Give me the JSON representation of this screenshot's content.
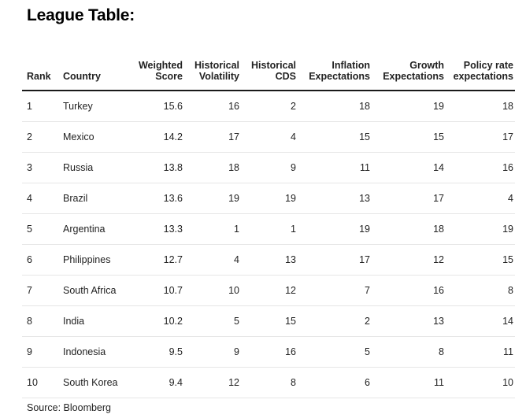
{
  "title": "League Table:",
  "columns": [
    {
      "label_line1": "",
      "label_line2": "Rank"
    },
    {
      "label_line1": "",
      "label_line2": "Country"
    },
    {
      "label_line1": "Weighted",
      "label_line2": "Score"
    },
    {
      "label_line1": "Historical",
      "label_line2": "Volatility"
    },
    {
      "label_line1": "Historical",
      "label_line2": "CDS"
    },
    {
      "label_line1": "Inflation",
      "label_line2": "Expectations"
    },
    {
      "label_line1": "Growth",
      "label_line2": "Expectations"
    },
    {
      "label_line1": "Policy rate",
      "label_line2": "expectations"
    }
  ],
  "rows": [
    [
      "1",
      "Turkey",
      "15.6",
      "16",
      "2",
      "18",
      "19",
      "18"
    ],
    [
      "2",
      "Mexico",
      "14.2",
      "17",
      "4",
      "15",
      "15",
      "17"
    ],
    [
      "3",
      "Russia",
      "13.8",
      "18",
      "9",
      "11",
      "14",
      "16"
    ],
    [
      "4",
      "Brazil",
      "13.6",
      "19",
      "19",
      "13",
      "17",
      "4"
    ],
    [
      "5",
      "Argentina",
      "13.3",
      "1",
      "1",
      "19",
      "18",
      "19"
    ],
    [
      "6",
      "Philippines",
      "12.7",
      "4",
      "13",
      "17",
      "12",
      "15"
    ],
    [
      "7",
      "South Africa",
      "10.7",
      "10",
      "12",
      "7",
      "16",
      "8"
    ],
    [
      "8",
      "India",
      "10.2",
      "5",
      "15",
      "2",
      "13",
      "14"
    ],
    [
      "9",
      "Indonesia",
      "9.5",
      "9",
      "16",
      "5",
      "8",
      "11"
    ],
    [
      "10",
      "South Korea",
      "9.4",
      "12",
      "8",
      "6",
      "11",
      "10"
    ]
  ],
  "source": "Source: Bloomberg",
  "colors": {
    "text": "#222222",
    "header_rule": "#1a1a1a",
    "row_rule": "#e6e6e6"
  }
}
